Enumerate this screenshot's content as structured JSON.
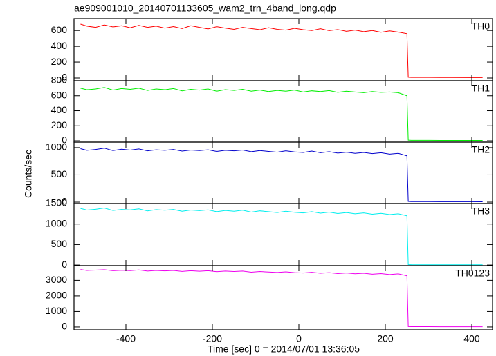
{
  "chart_data": [
    {
      "type": "line",
      "title": "ae909001010_20140701133605_wam2_trn_4band_long.qdp",
      "x": [
        -505,
        -490,
        -470,
        -450,
        -430,
        -410,
        -390,
        -370,
        -350,
        -330,
        -310,
        -290,
        -270,
        -250,
        -230,
        -210,
        -190,
        -170,
        -150,
        -130,
        -110,
        -90,
        -70,
        -50,
        -30,
        -10,
        10,
        30,
        50,
        70,
        90,
        110,
        130,
        150,
        170,
        190,
        210,
        230,
        250,
        253,
        260,
        300,
        350,
        400,
        425
      ],
      "series": [
        {
          "name": "TH0",
          "color": "#ff0000",
          "values": [
            680,
            655,
            640,
            670,
            645,
            660,
            635,
            665,
            640,
            655,
            630,
            650,
            625,
            660,
            640,
            620,
            648,
            630,
            615,
            640,
            625,
            610,
            635,
            615,
            605,
            628,
            610,
            600,
            622,
            598,
            612,
            590,
            605,
            585,
            600,
            578,
            595,
            580,
            560,
            10,
            8,
            7,
            6,
            5,
            5
          ]
        }
      ],
      "xlim": [
        -520,
        448
      ],
      "ylim": [
        -35,
        750
      ],
      "yticks": [
        0,
        200,
        400,
        600
      ],
      "xticks": [
        -400,
        -200,
        0,
        200,
        400
      ]
    },
    {
      "type": "line",
      "x": [
        -505,
        -490,
        -470,
        -450,
        -430,
        -410,
        -390,
        -370,
        -350,
        -330,
        -310,
        -290,
        -270,
        -250,
        -230,
        -210,
        -190,
        -170,
        -150,
        -130,
        -110,
        -90,
        -70,
        -50,
        -30,
        -10,
        10,
        30,
        50,
        70,
        90,
        110,
        130,
        150,
        170,
        190,
        210,
        230,
        250,
        253,
        260,
        300,
        350,
        400,
        425
      ],
      "series": [
        {
          "name": "TH1",
          "color": "#00ee00",
          "values": [
            700,
            680,
            690,
            710,
            675,
            695,
            685,
            700,
            670,
            690,
            680,
            695,
            665,
            685,
            675,
            690,
            660,
            680,
            670,
            685,
            660,
            675,
            655,
            670,
            660,
            675,
            650,
            665,
            655,
            668,
            645,
            660,
            650,
            640,
            655,
            645,
            650,
            640,
            600,
            8,
            6,
            6,
            5,
            5,
            5
          ]
        }
      ],
      "xlim": [
        -520,
        448
      ],
      "ylim": [
        -18,
        800
      ],
      "yticks": [
        0,
        200,
        400,
        600,
        800
      ],
      "xticks": [
        -400,
        -200,
        0,
        200,
        400
      ]
    },
    {
      "type": "line",
      "ylabel": "Counts/sec",
      "x": [
        -505,
        -490,
        -470,
        -450,
        -430,
        -410,
        -390,
        -370,
        -350,
        -330,
        -310,
        -290,
        -270,
        -250,
        -230,
        -210,
        -190,
        -170,
        -150,
        -130,
        -110,
        -90,
        -70,
        -50,
        -30,
        -10,
        10,
        30,
        50,
        70,
        90,
        110,
        130,
        150,
        170,
        190,
        210,
        230,
        250,
        253,
        260,
        300,
        350,
        400,
        425
      ],
      "series": [
        {
          "name": "TH2",
          "color": "#0000cc",
          "values": [
            980,
            950,
            965,
            990,
            945,
            970,
            955,
            975,
            940,
            960,
            950,
            965,
            935,
            955,
            945,
            960,
            930,
            950,
            940,
            955,
            925,
            945,
            930,
            915,
            940,
            920,
            910,
            935,
            905,
            925,
            900,
            915,
            895,
            910,
            890,
            905,
            880,
            895,
            850,
            12,
            10,
            9,
            8,
            8,
            7
          ]
        }
      ],
      "xlim": [
        -520,
        448
      ],
      "ylim": [
        -25,
        1100
      ],
      "yticks": [
        0,
        500,
        1000
      ],
      "xticks": [
        -400,
        -200,
        0,
        200,
        400
      ]
    },
    {
      "type": "line",
      "x": [
        -505,
        -490,
        -470,
        -450,
        -430,
        -410,
        -390,
        -370,
        -350,
        -330,
        -310,
        -290,
        -270,
        -250,
        -230,
        -210,
        -190,
        -170,
        -150,
        -130,
        -110,
        -90,
        -70,
        -50,
        -30,
        -10,
        10,
        30,
        50,
        70,
        90,
        110,
        130,
        150,
        170,
        190,
        210,
        230,
        250,
        253,
        260,
        300,
        350,
        400,
        425
      ],
      "series": [
        {
          "name": "TH3",
          "color": "#00eeee",
          "values": [
            1380,
            1340,
            1360,
            1390,
            1330,
            1355,
            1345,
            1370,
            1320,
            1350,
            1335,
            1355,
            1310,
            1340,
            1325,
            1345,
            1300,
            1330,
            1310,
            1335,
            1290,
            1320,
            1300,
            1280,
            1310,
            1285,
            1270,
            1300,
            1265,
            1290,
            1255,
            1280,
            1250,
            1270,
            1240,
            1260,
            1230,
            1250,
            1200,
            10,
            8,
            7,
            6,
            6,
            5
          ]
        }
      ],
      "xlim": [
        -520,
        448
      ],
      "ylim": [
        -15,
        1500
      ],
      "yticks": [
        0,
        500,
        1000,
        1500
      ],
      "xticks": [
        -400,
        -200,
        0,
        200,
        400
      ]
    },
    {
      "type": "line",
      "xlabel": "Time [sec] 0 = 2014/07/01 13:36:05",
      "x": [
        -505,
        -490,
        -470,
        -450,
        -430,
        -410,
        -390,
        -370,
        -350,
        -330,
        -310,
        -290,
        -270,
        -250,
        -230,
        -210,
        -190,
        -170,
        -150,
        -130,
        -110,
        -90,
        -70,
        -50,
        -30,
        -10,
        10,
        30,
        50,
        70,
        90,
        110,
        130,
        150,
        170,
        190,
        210,
        230,
        250,
        253,
        260,
        300,
        350,
        400,
        425
      ],
      "series": [
        {
          "name": "TH0123",
          "color": "#ee00ee",
          "values": [
            3700,
            3640,
            3660,
            3690,
            3620,
            3650,
            3630,
            3670,
            3600,
            3640,
            3610,
            3640,
            3580,
            3620,
            3590,
            3620,
            3560,
            3600,
            3570,
            3600,
            3530,
            3570,
            3540,
            3510,
            3550,
            3500,
            3480,
            3520,
            3460,
            3500,
            3440,
            3480,
            3430,
            3460,
            3400,
            3440,
            3380,
            3420,
            3300,
            25,
            20,
            18,
            16,
            15,
            15
          ]
        }
      ],
      "xlim": [
        -520,
        448
      ],
      "ylim": [
        -180,
        3950
      ],
      "yticks": [
        0,
        1000,
        2000,
        3000
      ],
      "xticks": [
        -400,
        -200,
        0,
        200,
        400
      ]
    }
  ]
}
